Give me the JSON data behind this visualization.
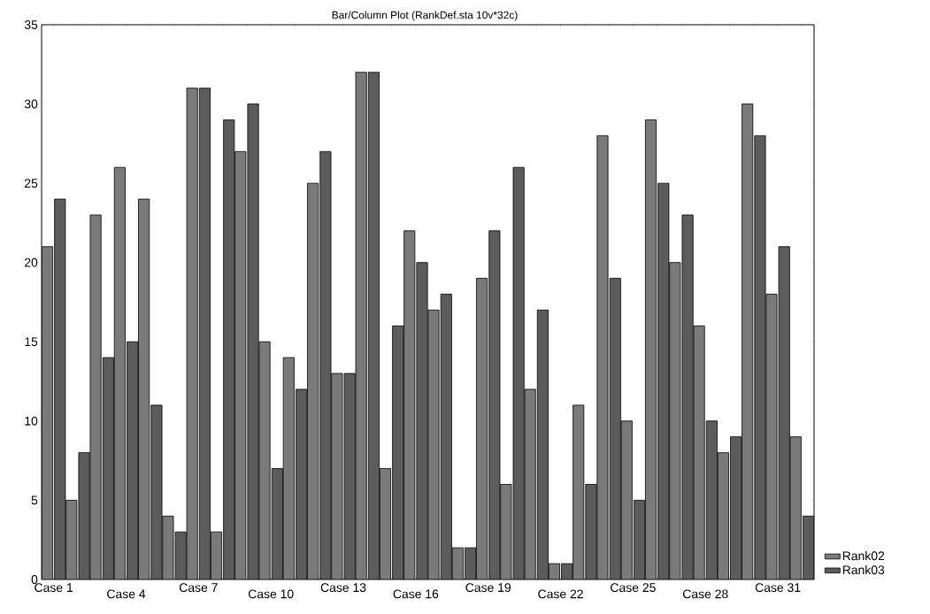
{
  "chart_data": {
    "type": "bar",
    "title": "Bar/Column Plot (RankDef.sta 10v*32c)",
    "categories": [
      "Case 1",
      null,
      null,
      "Case 4",
      null,
      null,
      "Case 7",
      null,
      null,
      "Case 10",
      null,
      null,
      "Case 13",
      null,
      null,
      "Case 16",
      null,
      null,
      "Case 19",
      null,
      null,
      "Case 22",
      null,
      null,
      "Case 25",
      null,
      null,
      "Case 28",
      null,
      null,
      "Case 31",
      null
    ],
    "series": [
      {
        "name": "Rank02",
        "color": "#7a7a7a",
        "values": [
          21,
          5,
          23,
          26,
          24,
          4,
          31,
          3,
          27,
          15,
          14,
          25,
          13,
          32,
          7,
          22,
          17,
          2,
          19,
          6,
          12,
          1,
          11,
          28,
          10,
          29,
          20,
          16,
          8,
          30,
          18,
          9
        ]
      },
      {
        "name": "Rank03",
        "color": "#5c5c5c",
        "values": [
          24,
          8,
          14,
          15,
          11,
          3,
          31,
          29,
          30,
          7,
          12,
          27,
          13,
          32,
          16,
          20,
          18,
          2,
          22,
          26,
          17,
          1,
          6,
          19,
          5,
          25,
          23,
          10,
          9,
          28,
          21,
          4
        ]
      }
    ],
    "ylim": [
      0,
      35
    ],
    "yticks": [
      0,
      5,
      10,
      15,
      20,
      25,
      30,
      35
    ],
    "grid": false,
    "legend": "bottom right"
  }
}
